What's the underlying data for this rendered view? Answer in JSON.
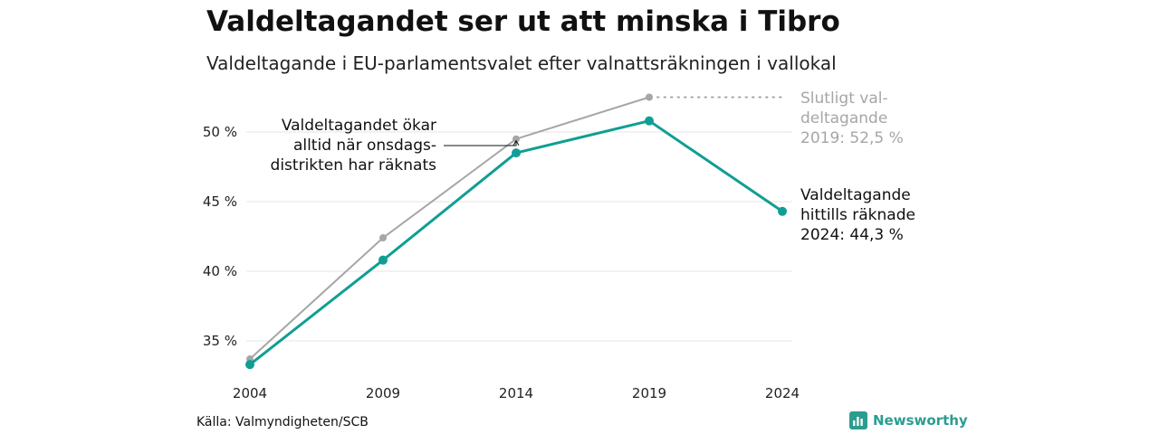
{
  "title": "Valdeltagandet ser ut att minska i Tibro",
  "subtitle": "Valdeltagande i EU-parlamentsvalet efter valnattsräkningen i vallokal",
  "source": "Källa: Valmyndigheten/SCB",
  "brand": {
    "name": "Newsworthy",
    "icon": "newsworthy-logo-icon"
  },
  "colors": {
    "current": "#109e94",
    "final": "#a6a6a6",
    "grid": "#e6e6e6"
  },
  "chart_data": {
    "type": "line",
    "x": [
      2004,
      2009,
      2014,
      2019,
      2024
    ],
    "ylim": [
      33,
      53.5
    ],
    "yticks": [
      {
        "value": 35,
        "label": "35 %"
      },
      {
        "value": 40,
        "label": "40 %"
      },
      {
        "value": 45,
        "label": "45 %"
      },
      {
        "value": 50,
        "label": "50 %"
      }
    ],
    "series": [
      {
        "key": "final",
        "values": [
          33.7,
          42.4,
          49.5,
          52.5,
          null
        ]
      },
      {
        "key": "current",
        "values": [
          33.3,
          40.8,
          48.5,
          50.8,
          44.3
        ]
      }
    ],
    "annotations": {
      "final_2019": [
        "Slutligt val-",
        "deltagande",
        "2019: 52,5 %"
      ],
      "current_2024": [
        "Valdeltagande",
        "hittills räknade",
        "2024: 44,3 %"
      ],
      "note": [
        "Valdeltagandet ökar",
        "alltid när onsdags-",
        "distrikten har räknats"
      ]
    },
    "grid": true
  }
}
